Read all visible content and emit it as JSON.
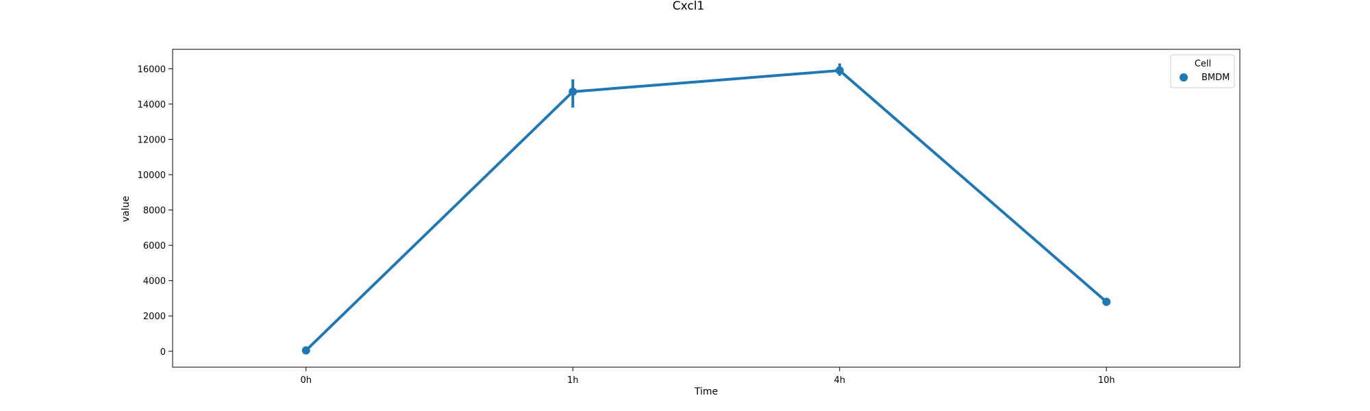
{
  "chart_data": {
    "type": "line",
    "title": "Cxcl1",
    "xlabel": "Time",
    "ylabel": "value",
    "categories": [
      "0h",
      "1h",
      "4h",
      "10h"
    ],
    "series": [
      {
        "name": "BMDM",
        "values": [
          50,
          14700,
          15900,
          2800
        ],
        "error_low": [
          50,
          13800,
          15600,
          2800
        ],
        "error_high": [
          50,
          15400,
          16300,
          2800
        ]
      }
    ],
    "ylim": [
      -900,
      17100
    ],
    "yticks": [
      0,
      2000,
      4000,
      6000,
      8000,
      10000,
      12000,
      14000,
      16000
    ],
    "grid": false,
    "legend": {
      "title": "Cell",
      "position": "top-right"
    },
    "colors": {
      "series": "#1f77b4",
      "axis": "#000000"
    }
  }
}
